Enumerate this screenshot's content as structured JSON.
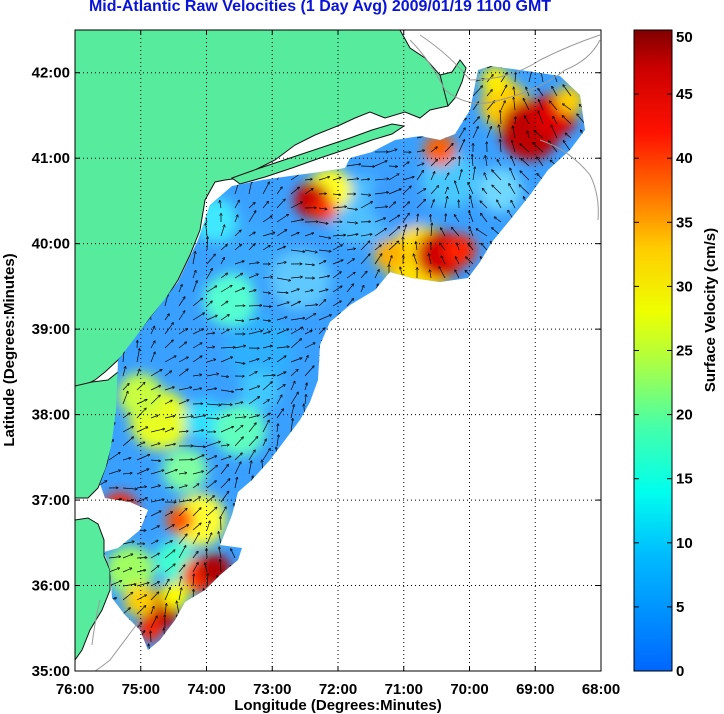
{
  "title": "Mid-Atlantic Raw Velocities (1 Day Avg) 2009/01/19 1100 GMT",
  "xlabel": "Longitude (Degrees:Minutes)",
  "ylabel": "Latitude (Degrees:Minutes)",
  "colorbar_label": "Surface Velocity (cm/s)",
  "x_ticks": [
    "76:00",
    "75:00",
    "74:00",
    "73:00",
    "72:00",
    "71:00",
    "70:00",
    "69:00",
    "68:00"
  ],
  "y_ticks": [
    "42:00",
    "41:00",
    "40:00",
    "39:00",
    "38:00",
    "37:00",
    "36:00",
    "35:00"
  ],
  "colorbar_ticks": [
    "50",
    "45",
    "40",
    "35",
    "30",
    "25",
    "20",
    "15",
    "10",
    "5",
    "0"
  ],
  "colors": {
    "title": "#0a14d8",
    "land": "#57ec9d",
    "ocean": "#ffffff",
    "bathymetry": "#9a9a9a",
    "colormap": [
      "#0000a0",
      "#0050ff",
      "#00c8ff",
      "#40ffb0",
      "#c0ff30",
      "#ffff00",
      "#ff9000",
      "#ff1000",
      "#800000"
    ]
  },
  "chart_data": {
    "type": "heatmap",
    "title": "Mid-Atlantic Raw Velocities (1 Day Avg) 2009/01/19 1100 GMT",
    "xlabel": "Longitude (Degrees:Minutes)",
    "ylabel": "Latitude (Degrees:Minutes)",
    "x_range": [
      "76:00",
      "68:00"
    ],
    "y_range": [
      "35:00",
      "42:30"
    ],
    "colorbar": {
      "label": "Surface Velocity (cm/s)",
      "range": [
        0,
        50
      ]
    },
    "grid": "dotted",
    "high_velocity_areas": [
      {
        "lon": "72:30",
        "lat": "40:30",
        "value": 45
      },
      {
        "lon": "70:20",
        "lat": "39:50",
        "value": 45
      },
      {
        "lon": "69:00",
        "lat": "41:20",
        "value": 50
      },
      {
        "lon": "74:30",
        "lat": "35:45",
        "value": 50
      },
      {
        "lon": "75:20",
        "lat": "37:00",
        "value": 40
      }
    ]
  }
}
